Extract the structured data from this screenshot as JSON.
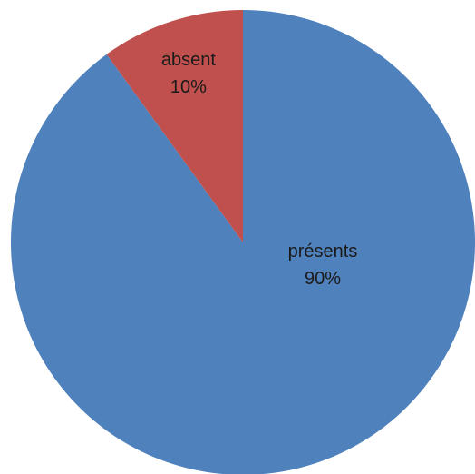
{
  "chart_data": {
    "type": "pie",
    "title": "",
    "slices": [
      {
        "label": "absent",
        "percent_label": "10%",
        "value": 10,
        "color": "#c0504d"
      },
      {
        "label": "présents",
        "percent_label": "90%",
        "value": 90,
        "color": "#4f81bd"
      }
    ],
    "start_angle": "12 o'clock",
    "direction": "counter-clockwise",
    "label_placement": "inside",
    "legend": "none"
  }
}
